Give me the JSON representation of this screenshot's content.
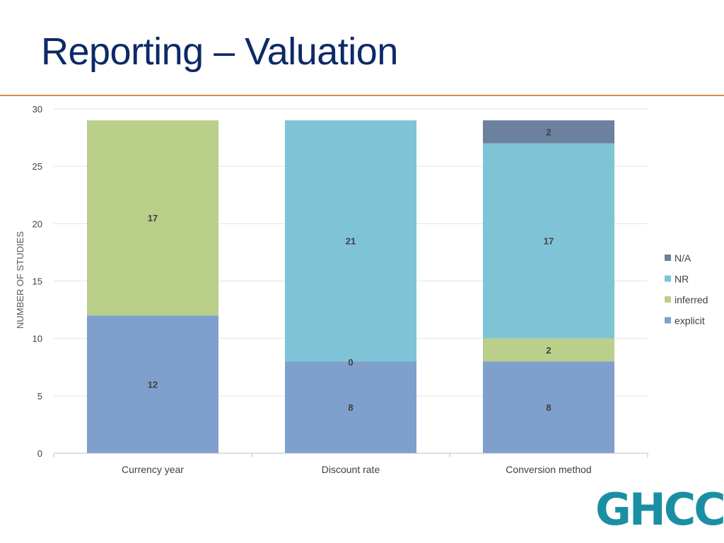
{
  "slide": {
    "title": "Reporting – Valuation",
    "logo_text": "GHCC"
  },
  "colors": {
    "title": "#0d2a67",
    "rule": "#e08a3c",
    "logo": "#1a8fa3",
    "explicit": "#7f9fcc",
    "inferred": "#b9cf8a",
    "NR": "#7fc3d6",
    "N/A": "#6b819e"
  },
  "chart_data": {
    "type": "bar",
    "stacked": true,
    "title": "",
    "xlabel": "",
    "ylabel": "NUMBER OF STUDIES",
    "categories": [
      "Currency year",
      "Discount rate",
      "Conversion method"
    ],
    "ylim": [
      0,
      30
    ],
    "yticks": [
      0,
      5,
      10,
      15,
      20,
      25,
      30
    ],
    "grid": true,
    "legend_position": "right",
    "legend_order": [
      "N/A",
      "NR",
      "inferred",
      "explicit"
    ],
    "series": [
      {
        "name": "explicit",
        "values": [
          12,
          8,
          8
        ],
        "labels": [
          "12",
          "8",
          "8"
        ]
      },
      {
        "name": "inferred",
        "values": [
          17,
          0,
          2
        ],
        "labels": [
          "17",
          "0",
          "2"
        ]
      },
      {
        "name": "NR",
        "values": [
          0,
          21,
          17
        ],
        "labels": [
          "",
          "21",
          "17"
        ]
      },
      {
        "name": "N/A",
        "values": [
          0,
          0,
          2
        ],
        "labels": [
          "",
          "",
          "2"
        ]
      }
    ]
  }
}
